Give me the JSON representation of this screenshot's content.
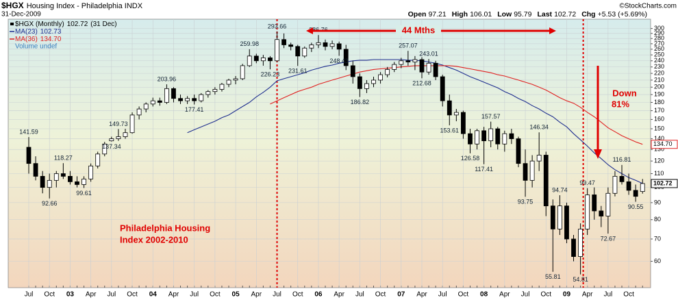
{
  "chart_data": {
    "type": "candlestick",
    "symbol": "$HGX",
    "name": "Housing Index - Philadelphia INDX",
    "date": "31-Dec-2009",
    "source": "©StockCharts.com",
    "quote": {
      "labels": [
        "Open",
        "High",
        "Low",
        "Last",
        "Chg"
      ],
      "chg": "+5.53 (+5.69%)"
    },
    "legend_main": "$HGX (Monthly)",
    "legend_date": "(31 Dec)",
    "volume_legend": "Volume undef",
    "annotations": [
      "44 Mths",
      "Down",
      "81%",
      "Philadelphia Housing",
      "Index 2002-2010"
    ],
    "log_scale": true,
    "grid": true,
    "up_color": "#ffffff",
    "down_color": "#000000",
    "ylim": [
      50,
      320
    ],
    "yticks": [
      60,
      70,
      80,
      90,
      100,
      110,
      120,
      130,
      140,
      150,
      160,
      170,
      180,
      190,
      200,
      210,
      220,
      230,
      240,
      250,
      260,
      270,
      280,
      290,
      300
    ],
    "categories": [
      "Jul",
      null,
      null,
      "Oct",
      null,
      null,
      "03",
      null,
      null,
      "Apr",
      null,
      null,
      "Jul",
      null,
      null,
      "Oct",
      null,
      null,
      "04",
      null,
      null,
      "Apr",
      null,
      null,
      "Jul",
      null,
      null,
      "Oct",
      null,
      null,
      "05",
      null,
      null,
      "Apr",
      null,
      null,
      "Jul",
      null,
      null,
      "Oct",
      null,
      null,
      "06",
      null,
      null,
      "Apr",
      null,
      null,
      "Jul",
      null,
      null,
      "Oct",
      null,
      null,
      "07",
      null,
      null,
      "Apr",
      null,
      null,
      "Jul",
      null,
      null,
      "Oct",
      null,
      null,
      "08",
      null,
      null,
      "Apr",
      null,
      null,
      "Jul",
      null,
      null,
      "Oct",
      null,
      null,
      "09",
      null,
      null,
      "Apr",
      null,
      null,
      "Jul",
      null,
      null,
      "Oct",
      null,
      null
    ],
    "candles": [
      [
        132,
        141.59,
        110,
        118
      ],
      [
        118,
        124,
        105,
        108
      ],
      [
        108,
        112,
        96,
        100
      ],
      [
        100,
        110,
        92.66,
        105
      ],
      [
        105,
        112,
        100,
        110
      ],
      [
        110,
        118.27,
        106,
        108
      ],
      [
        108,
        112,
        102,
        104
      ],
      [
        104,
        108,
        100,
        102
      ],
      [
        102,
        108,
        99.61,
        106
      ],
      [
        106,
        118,
        104,
        116
      ],
      [
        116,
        128,
        114,
        126
      ],
      [
        126,
        137,
        124,
        135
      ],
      [
        138,
        142,
        137.34,
        140
      ],
      [
        140,
        149.73,
        138,
        142
      ],
      [
        142,
        150,
        140,
        146
      ],
      [
        146,
        168,
        145,
        165
      ],
      [
        165,
        175,
        160,
        172
      ],
      [
        172,
        180,
        168,
        178
      ],
      [
        178,
        186,
        175,
        182
      ],
      [
        182,
        186,
        176,
        180
      ],
      [
        180,
        203.96,
        178,
        198
      ],
      [
        198,
        200,
        180,
        185
      ],
      [
        185,
        190,
        178,
        182
      ],
      [
        182,
        188,
        178,
        185
      ],
      [
        185,
        190,
        177.41,
        182
      ],
      [
        182,
        192,
        180,
        190
      ],
      [
        190,
        196,
        186,
        194
      ],
      [
        194,
        200,
        190,
        197
      ],
      [
        197,
        206,
        194,
        204
      ],
      [
        204,
        212,
        200,
        210
      ],
      [
        210,
        216,
        204,
        212
      ],
      [
        212,
        235,
        210,
        232
      ],
      [
        232,
        259.98,
        230,
        248
      ],
      [
        248,
        252,
        236,
        240
      ],
      [
        240,
        250,
        232,
        245
      ],
      [
        245,
        248,
        226.23,
        240
      ],
      [
        240,
        293.66,
        238,
        278
      ],
      [
        278,
        290,
        262,
        268
      ],
      [
        268,
        272,
        258,
        265
      ],
      [
        265,
        268,
        231.61,
        248
      ],
      [
        248,
        265,
        245,
        262
      ],
      [
        262,
        272,
        255,
        268
      ],
      [
        268,
        286.76,
        262,
        272
      ],
      [
        272,
        278,
        258,
        265
      ],
      [
        265,
        276,
        260,
        270
      ],
      [
        270,
        274,
        248.43,
        260
      ],
      [
        260,
        268,
        225,
        232
      ],
      [
        232,
        240,
        205,
        215
      ],
      [
        215,
        220,
        186.82,
        198
      ],
      [
        198,
        210,
        192,
        205
      ],
      [
        205,
        215,
        200,
        210
      ],
      [
        210,
        222,
        205,
        218
      ],
      [
        218,
        230,
        214,
        226
      ],
      [
        226,
        238,
        222,
        234
      ],
      [
        234,
        245,
        228,
        240
      ],
      [
        240,
        257.07,
        232,
        238
      ],
      [
        238,
        248,
        225,
        242
      ],
      [
        242,
        246,
        212.68,
        222
      ],
      [
        222,
        243.01,
        218,
        236
      ],
      [
        236,
        240,
        210,
        215
      ],
      [
        215,
        218,
        175,
        182
      ],
      [
        182,
        190,
        153.61,
        165
      ],
      [
        165,
        172,
        158,
        168
      ],
      [
        168,
        170,
        140,
        145
      ],
      [
        145,
        150,
        126.58,
        135
      ],
      [
        135,
        150,
        130,
        148
      ],
      [
        148,
        152,
        117.41,
        138
      ],
      [
        138,
        157.57,
        132,
        150
      ],
      [
        150,
        152,
        130,
        135
      ],
      [
        135,
        148,
        128,
        145
      ],
      [
        145,
        150,
        135,
        140
      ],
      [
        140,
        142,
        115,
        118
      ],
      [
        118,
        130,
        93.75,
        105
      ],
      [
        105,
        125,
        100,
        120
      ],
      [
        120,
        146.34,
        112,
        125
      ],
      [
        125,
        128,
        82,
        88
      ],
      [
        88,
        92,
        55.81,
        75
      ],
      [
        75,
        94.74,
        72,
        88
      ],
      [
        88,
        90,
        68,
        70
      ],
      [
        70,
        72,
        60,
        62
      ],
      [
        62,
        78,
        54.81,
        75
      ],
      [
        75,
        99.47,
        72,
        95
      ],
      [
        95,
        100,
        80,
        85
      ],
      [
        85,
        88,
        76,
        82
      ],
      [
        82,
        100,
        72.67,
        96
      ],
      [
        96,
        112,
        94,
        108
      ],
      [
        108,
        116.81,
        102,
        104
      ],
      [
        104,
        110,
        95,
        98
      ],
      [
        98,
        102,
        90.55,
        94
      ],
      [
        97.21,
        106.01,
        95.79,
        102.72
      ]
    ],
    "series": [
      {
        "name": "MA(23)",
        "color": "#1f2f8f",
        "values": [
          null,
          null,
          null,
          null,
          null,
          null,
          null,
          null,
          null,
          null,
          null,
          null,
          null,
          null,
          null,
          null,
          null,
          null,
          null,
          null,
          null,
          null,
          null,
          146,
          149,
          152,
          155,
          158,
          162,
          165,
          170,
          175,
          180,
          187,
          193,
          200,
          209,
          212,
          215,
          218,
          221,
          225,
          228,
          231,
          233,
          236,
          238,
          240,
          241,
          241,
          242,
          242,
          242,
          242,
          242,
          241,
          241,
          240,
          238,
          236,
          233,
          229,
          225,
          220,
          215,
          211,
          207,
          203,
          199,
          194,
          190,
          185,
          181,
          176,
          172,
          167,
          163,
          157,
          152,
          145,
          139,
          133,
          127,
          122,
          117,
          113,
          110,
          107,
          105,
          102.73
        ]
      },
      {
        "name": "MA(36)",
        "color": "#e02020",
        "last_label": "134.70",
        "values": [
          null,
          null,
          null,
          null,
          null,
          null,
          null,
          null,
          null,
          null,
          null,
          null,
          null,
          null,
          null,
          null,
          null,
          null,
          null,
          null,
          null,
          null,
          null,
          null,
          null,
          null,
          null,
          null,
          null,
          null,
          null,
          null,
          null,
          null,
          null,
          178,
          182,
          186,
          190,
          194,
          197,
          200,
          204,
          207,
          210,
          213,
          216,
          219,
          222,
          224,
          226,
          227,
          228,
          229,
          230,
          231,
          232,
          232,
          232,
          232,
          232,
          232,
          231,
          229,
          227,
          225,
          223,
          221,
          218,
          216,
          213,
          210,
          207,
          204,
          200,
          196,
          191,
          186,
          182,
          179,
          174,
          168,
          163,
          157,
          151,
          147,
          143,
          140,
          137,
          134.7
        ]
      }
    ]
  }
}
